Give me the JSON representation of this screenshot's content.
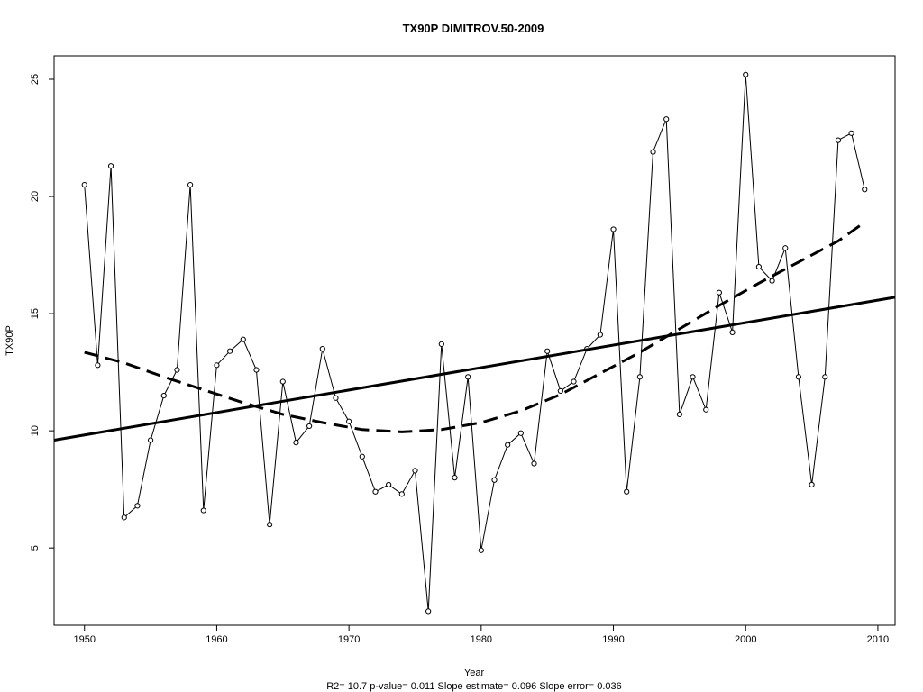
{
  "chart_data": {
    "type": "line",
    "title": "TX90P   DIMITROV.50-2009",
    "xlabel": "Year",
    "ylabel": "TX90P",
    "footer": "R2= 10.7  p-value= 0.011  Slope estimate= 0.096  Slope error= 0.036",
    "xlim": [
      1947.7,
      2011.3
    ],
    "ylim": [
      1.7,
      26.0
    ],
    "x_ticks": [
      1950,
      1960,
      1970,
      1980,
      1990,
      2000,
      2010
    ],
    "y_ticks": [
      5,
      10,
      15,
      20,
      25
    ],
    "grid": false,
    "legend": "none",
    "series": [
      {
        "style": "line-with-open-circles",
        "x": [
          1950,
          1951,
          1952,
          1953,
          1954,
          1955,
          1956,
          1957,
          1958,
          1959,
          1960,
          1961,
          1962,
          1963,
          1964,
          1965,
          1966,
          1967,
          1968,
          1969,
          1970,
          1971,
          1972,
          1973,
          1974,
          1975,
          1976,
          1977,
          1978,
          1979,
          1980,
          1981,
          1982,
          1983,
          1984,
          1985,
          1986,
          1987,
          1988,
          1989,
          1990,
          1991,
          1992,
          1993,
          1994,
          1995,
          1996,
          1997,
          1998,
          1999,
          2000,
          2001,
          2002,
          2003,
          2004,
          2005,
          2006,
          2007,
          2008,
          2009
        ],
        "values": [
          20.5,
          12.8,
          21.3,
          6.3,
          6.8,
          9.6,
          11.5,
          12.6,
          20.5,
          6.6,
          12.8,
          13.4,
          13.9,
          12.6,
          6.0,
          12.1,
          9.5,
          10.2,
          13.5,
          11.4,
          10.4,
          8.9,
          7.4,
          7.7,
          7.3,
          8.3,
          2.3,
          13.7,
          8.0,
          12.3,
          4.9,
          7.9,
          9.4,
          9.9,
          8.6,
          13.4,
          11.7,
          12.1,
          13.5,
          14.1,
          18.6,
          7.4,
          12.3,
          21.9,
          23.3,
          10.7,
          12.3,
          10.9,
          15.9,
          14.2,
          25.2,
          17.0,
          16.4,
          17.8,
          12.3,
          7.7,
          12.3,
          22.4,
          22.7,
          20.3
        ]
      },
      {
        "style": "solid-thick",
        "x": [
          1947.7,
          2011.3
        ],
        "values": [
          9.6,
          15.7
        ]
      },
      {
        "style": "dashed-thick",
        "x": [
          1950,
          1953,
          1956,
          1959,
          1962,
          1965,
          1968,
          1971,
          1974,
          1977,
          1980,
          1983,
          1986,
          1989,
          1992,
          1995,
          1998,
          2001,
          2004,
          2007,
          2009
        ],
        "values": [
          13.35,
          12.9,
          12.3,
          11.75,
          11.2,
          10.7,
          10.35,
          10.05,
          9.95,
          10.05,
          10.35,
          10.85,
          11.55,
          12.45,
          13.35,
          14.35,
          15.35,
          16.3,
          17.2,
          18.1,
          18.9
        ]
      }
    ]
  }
}
